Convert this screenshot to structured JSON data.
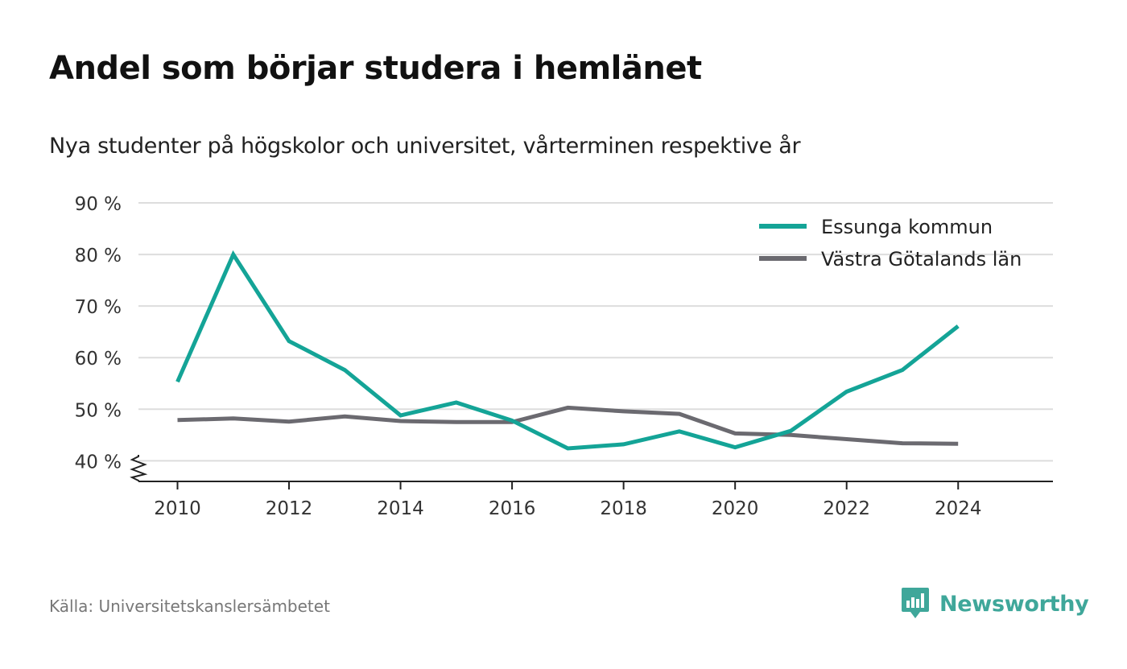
{
  "header": {
    "title": "Andel som börjar studera i hemlänet",
    "subtitle": "Nya studenter på högskolor och universitet, vårterminen respektive år"
  },
  "footer": {
    "source": "Källa: Universitetskanslersämbetet",
    "brand": "Newsworthy"
  },
  "colors": {
    "essunga": "#14a497",
    "vastra_gotaland": "#6b6a70",
    "grid": "#dddddd",
    "axis": "#222222",
    "brand": "#3fa79a"
  },
  "chart_data": {
    "type": "line",
    "x": [
      2010,
      2011,
      2012,
      2013,
      2014,
      2015,
      2016,
      2017,
      2018,
      2019,
      2020,
      2021,
      2022,
      2023,
      2024
    ],
    "series": [
      {
        "name": "Essunga kommun",
        "color": "#14a497",
        "values": [
          55.3,
          80.0,
          63.2,
          57.6,
          48.8,
          51.3,
          47.8,
          42.4,
          43.2,
          45.7,
          42.6,
          45.8,
          53.4,
          57.6,
          66.1
        ]
      },
      {
        "name": "Västra Götalands län",
        "color": "#6b6a70",
        "values": [
          47.9,
          48.2,
          47.6,
          48.6,
          47.7,
          47.5,
          47.5,
          50.3,
          49.6,
          49.1,
          45.3,
          45.0,
          44.2,
          43.4,
          43.3
        ]
      }
    ],
    "xticks": [
      2010,
      2012,
      2014,
      2016,
      2018,
      2020,
      2022,
      2024
    ],
    "yticks": [
      {
        "value": 40,
        "label": "40 %"
      },
      {
        "value": 50,
        "label": "50 %"
      },
      {
        "value": 60,
        "label": "60 %"
      },
      {
        "value": 70,
        "label": "70 %"
      },
      {
        "value": 80,
        "label": "80 %"
      },
      {
        "value": 90,
        "label": "90 %"
      }
    ],
    "xlim": [
      2009.3,
      2025.7
    ],
    "ylim": [
      36,
      90
    ],
    "y_axis_break": true,
    "grid": "horizontal",
    "legend_position": "top-right"
  }
}
